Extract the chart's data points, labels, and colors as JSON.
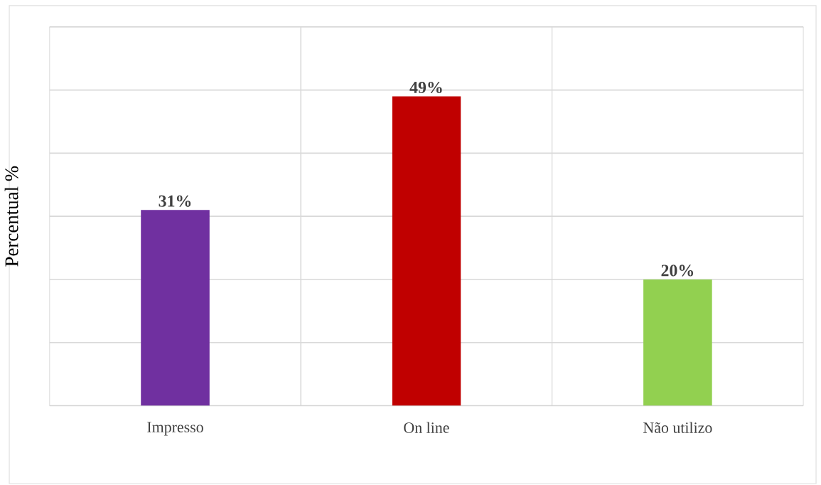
{
  "chart_data": {
    "type": "bar",
    "ylabel": "Percentual %",
    "categories": [
      "Impresso",
      "On line",
      "Não utilizo"
    ],
    "values": [
      31,
      49,
      20
    ],
    "colors": [
      "#7030a0",
      "#c00000",
      "#92d050"
    ],
    "value_labels": [
      "31%",
      "49%",
      "20%"
    ],
    "ylim": [
      0,
      60
    ],
    "yticks": [
      {
        "value": 0,
        "label": null
      },
      {
        "value": 10,
        "label": null
      },
      {
        "value": 20,
        "label": null
      },
      {
        "value": 30,
        "label": null
      },
      {
        "value": 40,
        "label": null
      },
      {
        "value": 50,
        "label": null
      },
      {
        "value": 60,
        "label": null
      }
    ],
    "tick_labels": "x",
    "grid": true
  }
}
